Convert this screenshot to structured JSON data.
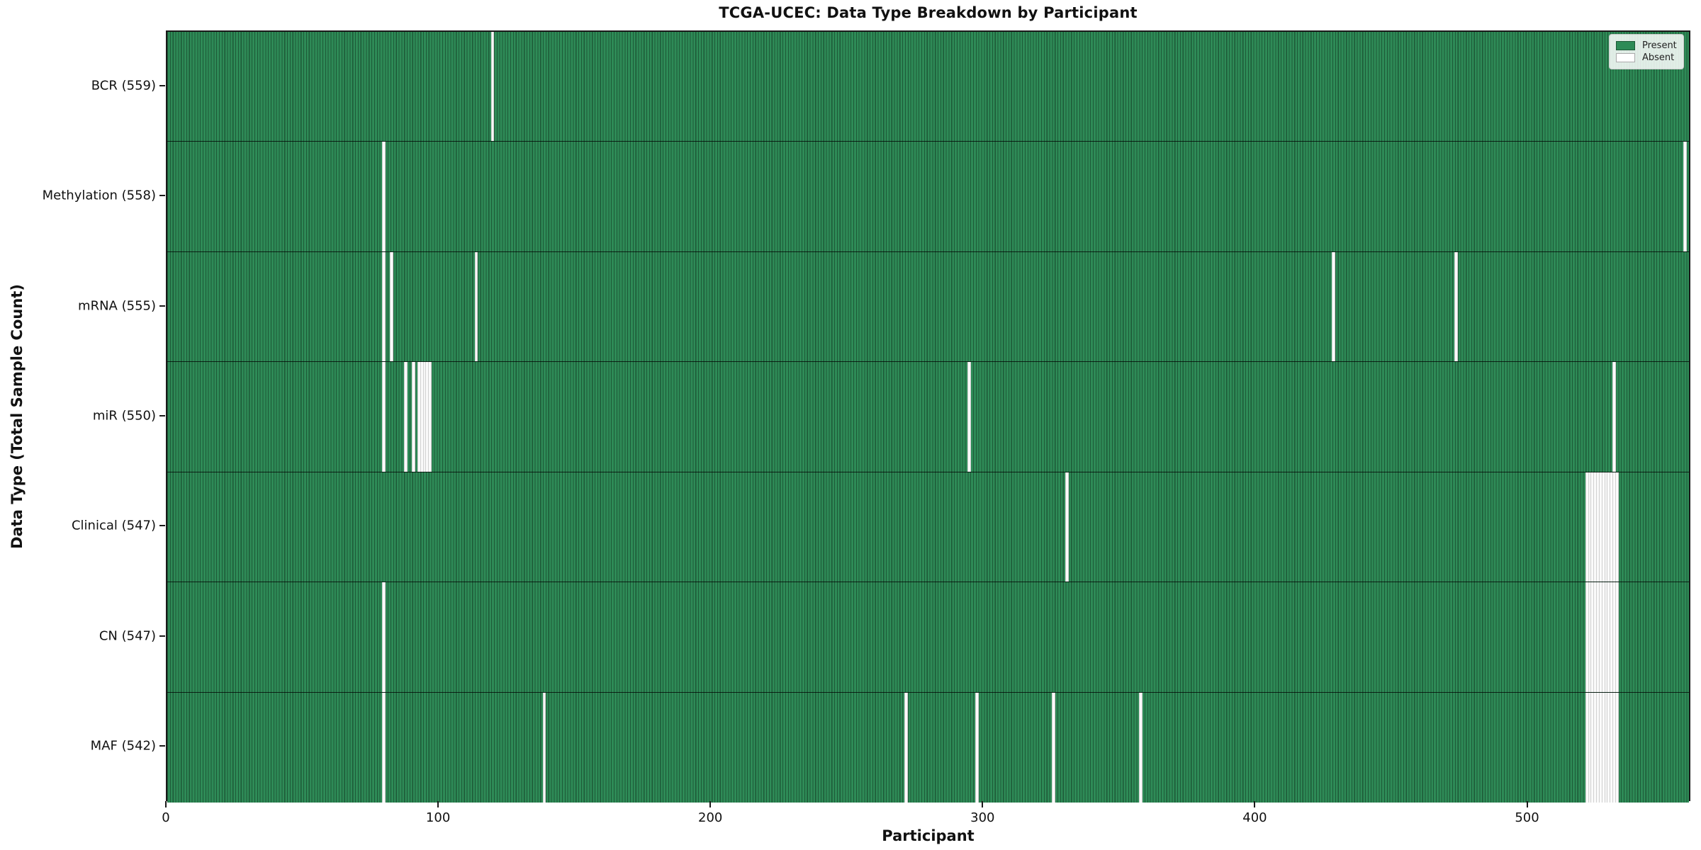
{
  "chart_data": {
    "type": "heatmap",
    "title": "TCGA-UCEC: Data Type Breakdown by Participant",
    "xlabel": "Participant",
    "ylabel": "Data Type (Total Sample Count)",
    "x_range": [
      0,
      560
    ],
    "participants_total": 560,
    "x_ticks": [
      0,
      100,
      200,
      300,
      400,
      500
    ],
    "grid": false,
    "legend_position": "upper right",
    "legend": {
      "present": "Present",
      "absent": "Absent"
    },
    "colors": {
      "present_fill": "#2e8b57",
      "present_edge": "#1d5937",
      "absent_fill": "#ffffff",
      "absent_edge": "#d4d4d4",
      "spine": "#1a1a1a"
    },
    "rows": [
      {
        "data_type": "BCR",
        "label": "BCR (559)",
        "present_count": 559,
        "absent_participants": [
          119
        ]
      },
      {
        "data_type": "Methylation",
        "label": "Methylation (558)",
        "present_count": 558,
        "absent_participants": [
          79,
          557
        ]
      },
      {
        "data_type": "mRNA",
        "label": "mRNA (555)",
        "present_count": 555,
        "absent_participants": [
          79,
          82,
          113,
          428,
          473
        ]
      },
      {
        "data_type": "miR",
        "label": "miR (550)",
        "present_count": 550,
        "absent_participants": [
          79,
          87,
          90,
          92,
          93,
          94,
          95,
          96,
          294,
          531
        ]
      },
      {
        "data_type": "Clinical",
        "label": "Clinical (547)",
        "present_count": 547,
        "absent_participants": [
          330,
          521,
          522,
          523,
          524,
          525,
          526,
          527,
          528,
          529,
          530,
          531,
          532
        ]
      },
      {
        "data_type": "CN",
        "label": "CN (547)",
        "present_count": 547,
        "absent_participants": [
          79,
          521,
          522,
          523,
          524,
          525,
          526,
          527,
          528,
          529,
          530,
          531,
          532
        ]
      },
      {
        "data_type": "MAF",
        "label": "MAF (542)",
        "present_count": 542,
        "absent_participants": [
          79,
          138,
          271,
          297,
          325,
          357,
          521,
          522,
          523,
          524,
          525,
          526,
          527,
          528,
          529,
          530,
          531,
          532
        ]
      }
    ]
  }
}
